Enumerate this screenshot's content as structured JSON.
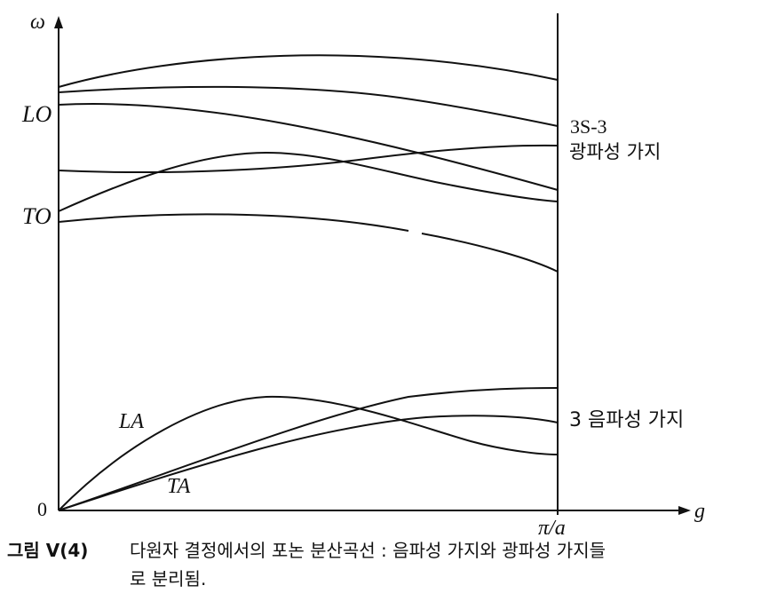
{
  "axes": {
    "y_label": "ω",
    "x_label": "g",
    "origin_label": "0",
    "x_end_label": "π/a",
    "lo_label": "LO",
    "to_label": "TO"
  },
  "branch_labels": {
    "la": "LA",
    "ta": "TA",
    "optical_count": "3S-3",
    "optical_name": "광파성 가지",
    "acoustic_name": "3 음파성 가지"
  },
  "caption": {
    "number": "그림 V(4)",
    "line1": "다원자 결정에서의 포논 분산곡선 : 음파성 가지와 광파성 가지들",
    "line2": "로 분리됨."
  }
}
